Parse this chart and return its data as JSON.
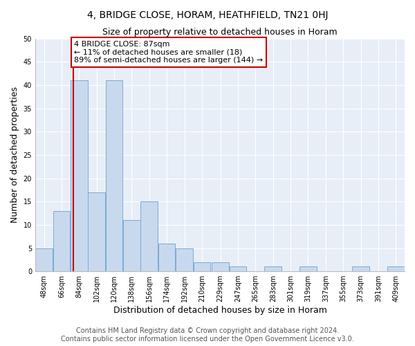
{
  "title": "4, BRIDGE CLOSE, HORAM, HEATHFIELD, TN21 0HJ",
  "subtitle": "Size of property relative to detached houses in Horam",
  "xlabel": "Distribution of detached houses by size in Horam",
  "ylabel": "Number of detached properties",
  "bin_labels": [
    "48sqm",
    "66sqm",
    "84sqm",
    "102sqm",
    "120sqm",
    "138sqm",
    "156sqm",
    "174sqm",
    "192sqm",
    "210sqm",
    "229sqm",
    "247sqm",
    "265sqm",
    "283sqm",
    "301sqm",
    "319sqm",
    "337sqm",
    "355sqm",
    "373sqm",
    "391sqm",
    "409sqm"
  ],
  "bin_edges": [
    48,
    66,
    84,
    102,
    120,
    138,
    156,
    174,
    192,
    210,
    229,
    247,
    265,
    283,
    301,
    319,
    337,
    355,
    373,
    391,
    409
  ],
  "bar_heights": [
    5,
    13,
    41,
    17,
    41,
    11,
    15,
    6,
    5,
    2,
    2,
    1,
    0,
    1,
    0,
    1,
    0,
    0,
    1,
    0,
    1
  ],
  "bar_color": "#c8d9ee",
  "bar_edge_color": "#7aaad4",
  "vline_x": 87,
  "vline_color": "#cc0000",
  "annotation_title": "4 BRIDGE CLOSE: 87sqm",
  "annotation_line1": "← 11% of detached houses are smaller (18)",
  "annotation_line2": "89% of semi-detached houses are larger (144) →",
  "annotation_box_color": "#cc0000",
  "ylim": [
    0,
    50
  ],
  "yticks": [
    0,
    5,
    10,
    15,
    20,
    25,
    30,
    35,
    40,
    45,
    50
  ],
  "bg_color": "#e8eef7",
  "footer1": "Contains HM Land Registry data © Crown copyright and database right 2024.",
  "footer2": "Contains public sector information licensed under the Open Government Licence v3.0.",
  "title_fontsize": 10,
  "subtitle_fontsize": 9,
  "axis_label_fontsize": 9,
  "tick_fontsize": 7,
  "footer_fontsize": 7,
  "annotation_fontsize": 8
}
